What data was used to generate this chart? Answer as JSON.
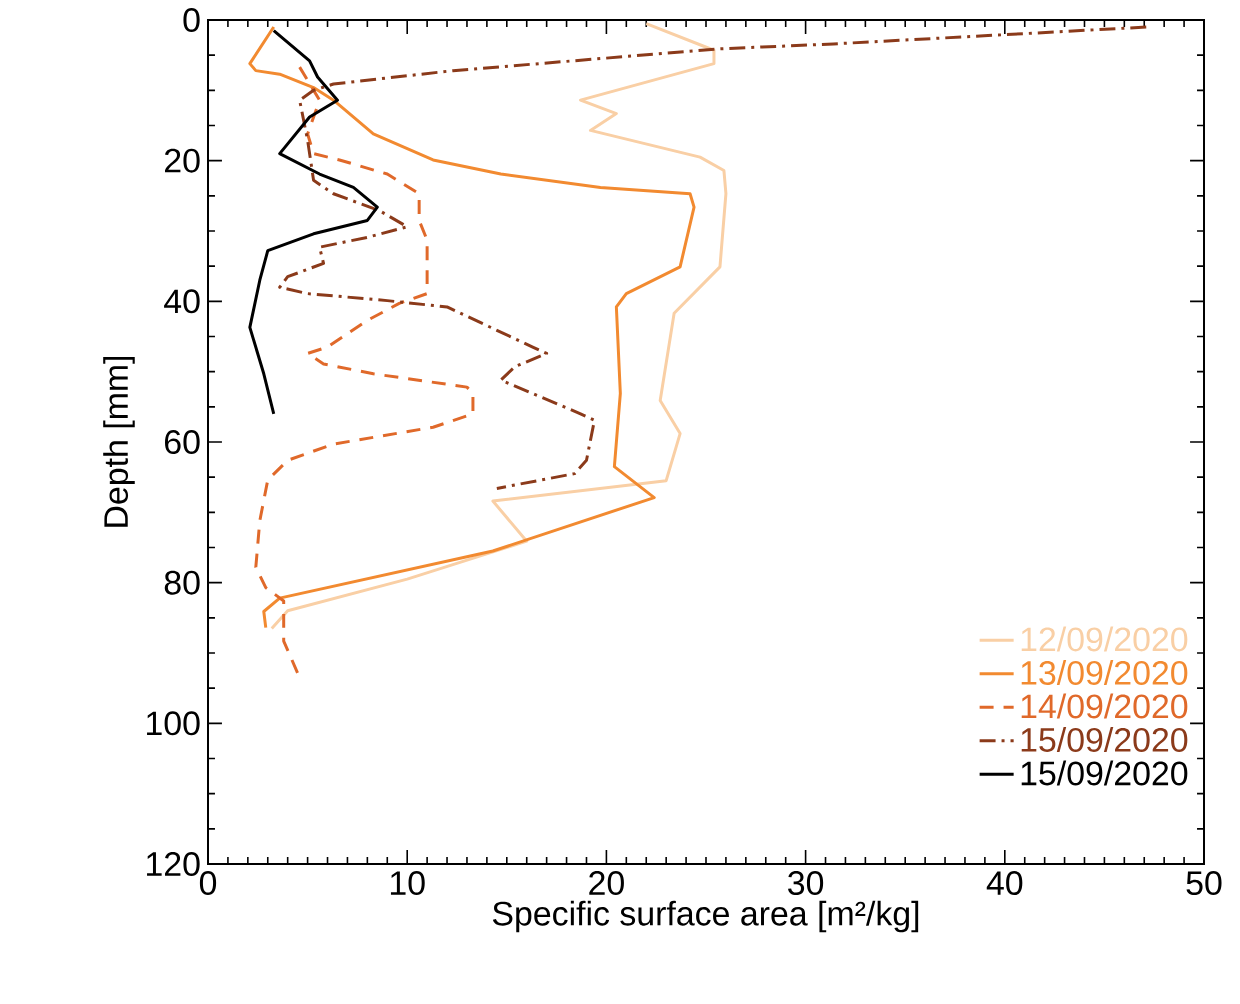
{
  "chart_data": {
    "type": "line",
    "xlabel": "Specific surface area [m²/kg]",
    "ylabel": "Depth [mm]",
    "xlim": [
      0,
      50
    ],
    "ylim": [
      120,
      0
    ],
    "xticks": [
      0,
      10,
      20,
      30,
      40,
      50
    ],
    "yticks": [
      0,
      20,
      40,
      60,
      80,
      100,
      120
    ],
    "grid": false,
    "legend": "bottom right",
    "marker": "none",
    "series": [
      {
        "name": "12/09/2020",
        "color": "#f9cfa5",
        "line_style": "solid",
        "x": [
          22.0,
          25.4,
          25.4,
          18.7,
          20.5,
          19.2,
          24.7,
          25.9,
          26.0,
          25.7,
          23.4,
          22.7,
          23.7,
          23.0,
          14.3,
          16.0,
          10.0,
          4.0,
          3.2
        ],
        "values": [
          0.5,
          4.3,
          6.2,
          11.4,
          13.3,
          15.7,
          19.5,
          21.4,
          24.7,
          35.1,
          41.7,
          54.1,
          58.8,
          65.5,
          68.4,
          74.1,
          79.5,
          84,
          86.5
        ]
      },
      {
        "name": "13/09/2020",
        "color": "#f28a30",
        "line_style": "solid",
        "x": [
          3.3,
          2.1,
          2.4,
          3.6,
          5.3,
          6.3,
          8.3,
          11.3,
          14.7,
          19.7,
          24.2,
          24.4,
          23.7,
          21.0,
          20.5,
          20.7,
          20.4,
          22.4,
          14.3,
          3.6,
          2.8,
          2.9
        ],
        "values": [
          1.0,
          6.2,
          7.2,
          7.7,
          9.6,
          11.4,
          16.2,
          19.9,
          21.9,
          23.8,
          24.7,
          26.6,
          35.1,
          38.9,
          40.8,
          53.1,
          63.5,
          67.9,
          75.5,
          82.2,
          84.1,
          86.4
        ]
      },
      {
        "name": "14/09/2020",
        "color": "#e0692a",
        "line_style": "dashed",
        "x": [
          4.6,
          5.6,
          5.0,
          5.3,
          6.6,
          9.0,
          10.6,
          10.6,
          11.0,
          11.0,
          9.6,
          8.0,
          6.0,
          5.0,
          5.8,
          8.3,
          13.0,
          13.3,
          13.3,
          11.3,
          6.3,
          4.0,
          3.0,
          2.6,
          2.4,
          2.9,
          3.8,
          3.8,
          4.6
        ],
        "values": [
          6.7,
          11.4,
          16.2,
          19.0,
          19.9,
          21.9,
          24.7,
          28.5,
          31.3,
          38.9,
          40.3,
          42.7,
          46.5,
          47.4,
          48.9,
          50.3,
          52.2,
          53.1,
          56.0,
          57.9,
          60.3,
          62.6,
          65.4,
          71.2,
          77.8,
          80.7,
          82.6,
          88.3,
          93.5
        ]
      },
      {
        "name": "15/09/2020",
        "color": "#8b3a1a",
        "line_style": "dashdot",
        "x": [
          47.1,
          31.4,
          25.7,
          12.3,
          6.3,
          5.3,
          4.6,
          5.0,
          5.3,
          6.3,
          8.6,
          10.0,
          8.0,
          5.6,
          5.8,
          4.0,
          3.6,
          5.0,
          9.0,
          12.0,
          16.3,
          17.0,
          15.4,
          14.7,
          16.3,
          18.7,
          19.4,
          19.0,
          18.4,
          14.5
        ],
        "values": [
          1.0,
          3.4,
          4.1,
          7.2,
          9.1,
          10.0,
          11.4,
          17.1,
          22.8,
          24.7,
          27.1,
          29.4,
          30.9,
          32.3,
          34.6,
          36.5,
          38.0,
          38.9,
          39.9,
          40.8,
          46.5,
          47.4,
          49.3,
          51.2,
          53.1,
          56.0,
          56.9,
          62.6,
          64.5,
          66.6
        ]
      },
      {
        "name": "15/09/2020",
        "color": "#000000",
        "line_style": "solid",
        "x": [
          3.3,
          5.1,
          5.5,
          6.5,
          5.1,
          3.6,
          5.6,
          7.3,
          8.5,
          8.0,
          5.3,
          3.0,
          2.6,
          2.1,
          2.8,
          3.3
        ],
        "values": [
          1.5,
          5.8,
          8.1,
          11.4,
          13.8,
          19.0,
          21.9,
          23.8,
          26.6,
          28.5,
          30.4,
          32.8,
          37.0,
          43.7,
          50.3,
          56.0
        ]
      }
    ]
  }
}
